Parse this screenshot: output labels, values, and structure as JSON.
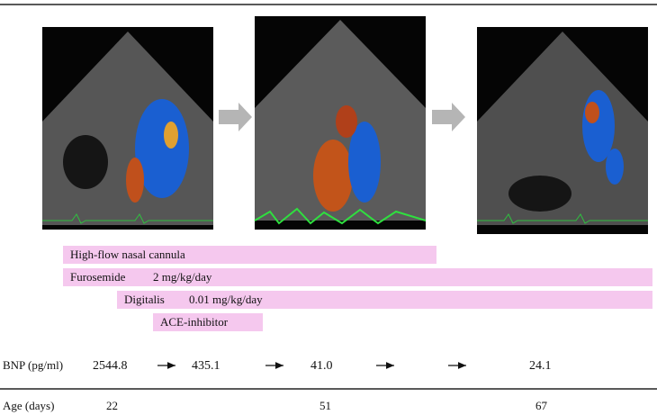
{
  "treatments": [
    {
      "name": "High-flow nasal cannula"
    },
    {
      "name": "Furosemide",
      "dose": "2 mg/kg/day"
    },
    {
      "name": "Digitalis",
      "dose": "0.01 mg/kg/day"
    },
    {
      "name": "ACE-inhibitor"
    }
  ],
  "bnp": {
    "label": "BNP (pg/ml)",
    "values": [
      "2544.8",
      "435.1",
      "41.0",
      "24.1"
    ]
  },
  "age": {
    "label": "Age (days)",
    "values": [
      22,
      51,
      67
    ]
  }
}
